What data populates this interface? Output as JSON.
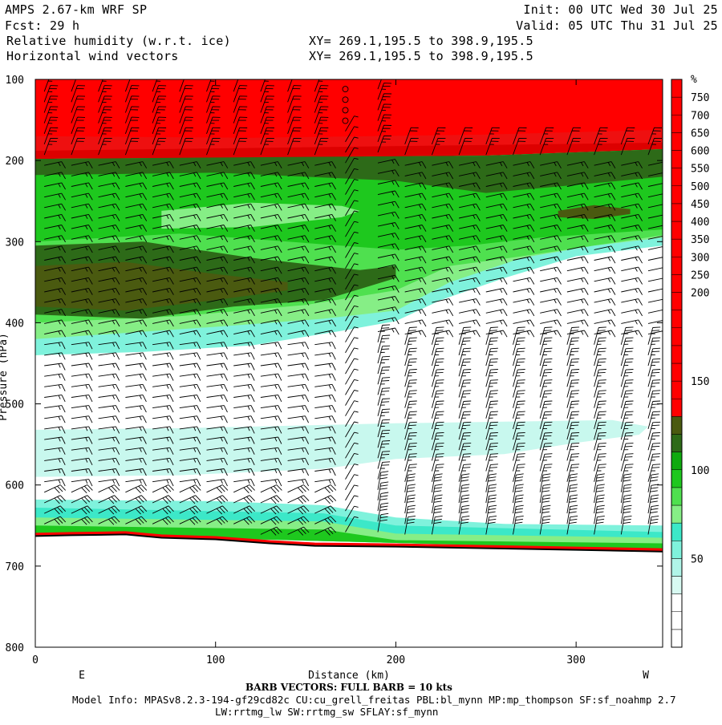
{
  "header": {
    "line1_left": "AMPS 2.67-km WRF SP",
    "line2_left": "Fcst:   29 h",
    "line3_left": "Relative humidity (w.r.t. ice)",
    "line4_left": "Horizontal wind vectors",
    "line1_right": "Init: 00 UTC Wed 30 Jul 25",
    "line2_right": "Valid: 05 UTC Thu 31 Jul 25",
    "line3_mid": "XY= 269.1,195.5 to 398.9,195.5",
    "line4_mid": "XY= 269.1,195.5 to 398.9,195.5"
  },
  "footer": {
    "barb_note": "BARB VECTORS:  FULL BARB = 10 kts",
    "model_info": "Model Info: MPASv8.2.3-194-gf29cd82c CU:cu_grell_freitas PBL:bl_mynn MP:mp_thompson SF:sf_noahmp 2.7",
    "model_info2": "LW:rrtmg_lw SW:rrtmg_sw SFLAY:sf_mynn"
  },
  "chart_data": {
    "type": "heatmap",
    "title": "Relative humidity (w.r.t. ice)",
    "xlabel": "Distance (km)",
    "ylabel": "Pressure (hPa)",
    "xlim": [
      0,
      348
    ],
    "ylim": [
      800,
      100
    ],
    "x_ticks": [
      0,
      100,
      200,
      300
    ],
    "y_ticks": [
      100,
      200,
      300,
      400,
      500,
      600,
      700,
      800
    ],
    "x_end_labels": [
      "E",
      "W"
    ],
    "colorbar": {
      "unit": "%",
      "labels": [
        50,
        100,
        150,
        200,
        250,
        300,
        350,
        400,
        450,
        500,
        550,
        600,
        650,
        700,
        750
      ],
      "levels": [
        0,
        10,
        20,
        30,
        40,
        50,
        60,
        70,
        80,
        90,
        100,
        110,
        120,
        130,
        140,
        150,
        160,
        170,
        180,
        190,
        200,
        250,
        300,
        350,
        400,
        450,
        500,
        550,
        600,
        650,
        700,
        750,
        800
      ],
      "colors": {
        "white": "#ffffff",
        "cyan_light": "#c8f8ee",
        "cyan": "#7ff2dc",
        "cyan_dark": "#3ce8c8",
        "green_1": "#86ee86",
        "green_2": "#4fe04f",
        "green_3": "#1ec81e",
        "green_4": "#0faa0f",
        "green_dark": "#2d6a18",
        "brown_green": "#4a5a10",
        "red": "#ff0000",
        "red_mid": "#ee1010",
        "red_dark": "#dd0000"
      }
    },
    "terrain_pressure": [
      {
        "x": 0,
        "p": 661
      },
      {
        "x": 20,
        "p": 660
      },
      {
        "x": 50,
        "p": 659
      },
      {
        "x": 70,
        "p": 663
      },
      {
        "x": 100,
        "p": 665
      },
      {
        "x": 130,
        "p": 670
      },
      {
        "x": 155,
        "p": 673
      },
      {
        "x": 200,
        "p": 674
      },
      {
        "x": 250,
        "p": 676
      },
      {
        "x": 300,
        "p": 678
      },
      {
        "x": 348,
        "p": 680
      }
    ],
    "rh_layers": [
      {
        "name": "saturated_top",
        "top": 100,
        "bottom": 195,
        "rh_approx": 180
      },
      {
        "name": "upper_moist",
        "top": 195,
        "bottom": 420,
        "rh_approx": 110
      },
      {
        "name": "mid_moist",
        "top": 525,
        "bottom": 585,
        "rh_approx": 30
      },
      {
        "name": "near_surface",
        "top": 625,
        "bottom": 660,
        "rh_approx": 60
      }
    ],
    "barb_columns_km": [
      5,
      20,
      35,
      50,
      65,
      80,
      95,
      110,
      125,
      140,
      155,
      172,
      190,
      205,
      220,
      235,
      250,
      265,
      280,
      295,
      310,
      325,
      340
    ]
  }
}
